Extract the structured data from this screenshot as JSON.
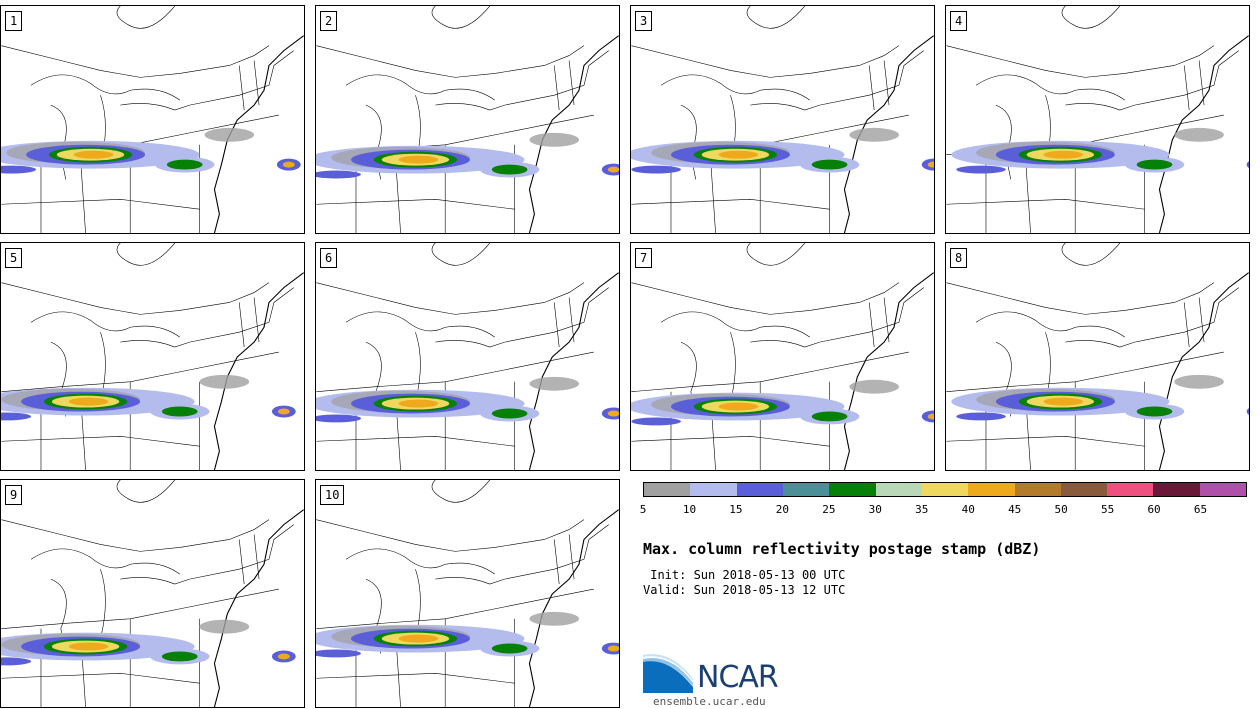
{
  "panels": [
    "1",
    "2",
    "3",
    "4",
    "5",
    "6",
    "7",
    "8",
    "9",
    "10"
  ],
  "colorbar": {
    "colors": [
      "#a0a0a0",
      "#b4bcee",
      "#5a5ed8",
      "#4a9096",
      "#078007",
      "#b8d8b8",
      "#eed860",
      "#eeaa1c",
      "#b47a2c",
      "#8a5a3c",
      "#ee5080",
      "#6a1838",
      "#b050a8"
    ],
    "ticks": [
      "5",
      "10",
      "15",
      "20",
      "25",
      "30",
      "35",
      "40",
      "45",
      "50",
      "55",
      "60",
      "65"
    ]
  },
  "title": "Max. column reflectivity postage stamp (dBZ)",
  "init": " Init: Sun 2018-05-13 00 UTC",
  "valid": "Valid: Sun 2018-05-13 12 UTC",
  "logo": {
    "text": "NCAR",
    "url": "ensemble.ucar.edu"
  }
}
